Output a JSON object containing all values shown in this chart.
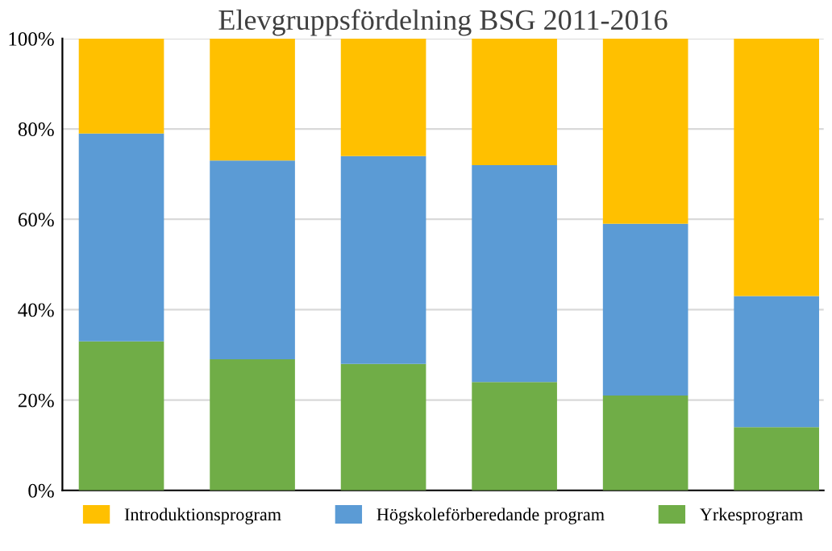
{
  "chart_data": {
    "type": "bar",
    "title": "Elevgruppsfördelning BSG 2011-2016",
    "stacked": true,
    "categories": [
      null,
      null,
      null,
      null,
      null,
      null
    ],
    "series": [
      {
        "name": "Yrkesprogram",
        "color": "#70ad47",
        "values": [
          33,
          29,
          28,
          24,
          21,
          14
        ]
      },
      {
        "name": "Högskoleförberedande program",
        "color": "#5b9bd5",
        "values": [
          46,
          44,
          46,
          48,
          38,
          29
        ]
      },
      {
        "name": "Introduktionsprogram",
        "color": "#ffc000",
        "values": [
          21,
          27,
          26,
          28,
          41,
          57
        ]
      }
    ],
    "ylim": [
      0,
      100
    ],
    "yticks": [
      {
        "value": 0,
        "label": "0%"
      },
      {
        "value": 20,
        "label": "20%"
      },
      {
        "value": 40,
        "label": "40%"
      },
      {
        "value": 60,
        "label": "60%"
      },
      {
        "value": 80,
        "label": "80%"
      },
      {
        "value": 100,
        "label": "100%"
      }
    ],
    "grid": "y",
    "legend": "bottom"
  }
}
